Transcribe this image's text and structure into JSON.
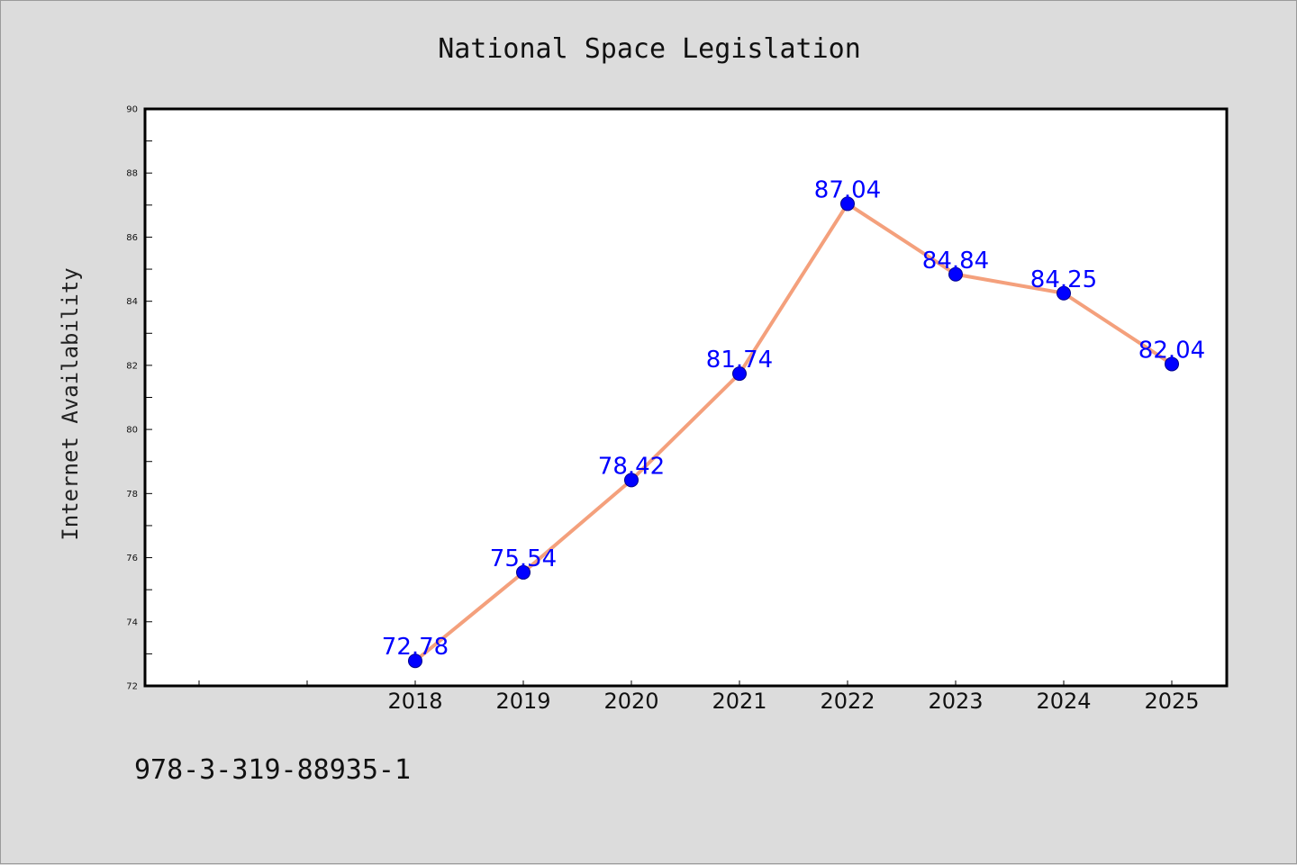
{
  "chart_data": {
    "type": "line",
    "title": "National Space Legislation",
    "xlabel": "",
    "ylabel": "Internet Availability",
    "categories": [
      "2018",
      "2019",
      "2020",
      "2021",
      "2022",
      "2023",
      "2024",
      "2025"
    ],
    "values": [
      72.78,
      75.54,
      78.42,
      81.74,
      87.04,
      84.84,
      84.25,
      82.04
    ],
    "data_labels": [
      "72.78",
      "75.54",
      "78.42",
      "81.74",
      "87.04",
      "84.84",
      "84.25",
      "82.04"
    ],
    "ylim": [
      72,
      90
    ],
    "yticks": [
      "72",
      "74",
      "76",
      "78",
      "80",
      "82",
      "84",
      "86",
      "88",
      "90"
    ],
    "grid": false,
    "legend": "none",
    "line_color": "#f4a07c",
    "marker_color": "#0000ff",
    "label_color": "#0000ff"
  },
  "footer": {
    "isbn": "978-3-319-88935-1"
  }
}
